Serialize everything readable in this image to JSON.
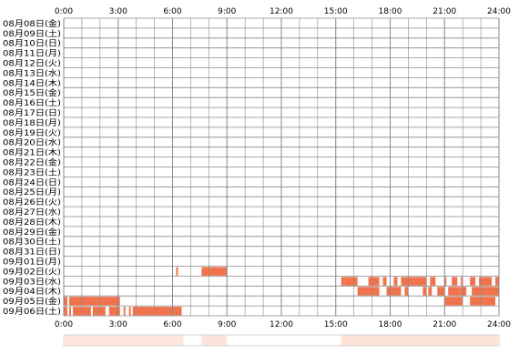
{
  "chart_data": {
    "type": "heatmap",
    "title": "",
    "xlabel": "",
    "ylabel": "",
    "x_range_hours": [
      0,
      24
    ],
    "x_ticks": [
      "0:00",
      "3:00",
      "6:00",
      "9:00",
      "12:00",
      "15:00",
      "18:00",
      "21:00",
      "24:00"
    ],
    "grid": true,
    "colors": {
      "activity": "#f0734d",
      "activity_light": "#f9b8a0",
      "grid": "#888888",
      "summary_light": "#fde3d8"
    },
    "rows": [
      {
        "label": "08月08日(金)",
        "intervals": []
      },
      {
        "label": "08月09日(土)",
        "intervals": []
      },
      {
        "label": "08月10日(日)",
        "intervals": []
      },
      {
        "label": "08月11日(月)",
        "intervals": []
      },
      {
        "label": "08月12日(火)",
        "intervals": []
      },
      {
        "label": "08月13日(水)",
        "intervals": []
      },
      {
        "label": "08月14日(木)",
        "intervals": []
      },
      {
        "label": "08月15日(金)",
        "intervals": []
      },
      {
        "label": "08月16日(土)",
        "intervals": []
      },
      {
        "label": "08月17日(日)",
        "intervals": []
      },
      {
        "label": "08月18日(月)",
        "intervals": []
      },
      {
        "label": "08月19日(火)",
        "intervals": []
      },
      {
        "label": "08月20日(水)",
        "intervals": []
      },
      {
        "label": "08月21日(木)",
        "intervals": []
      },
      {
        "label": "08月22日(金)",
        "intervals": []
      },
      {
        "label": "08月23日(土)",
        "intervals": []
      },
      {
        "label": "08月24日(日)",
        "intervals": []
      },
      {
        "label": "08月25日(月)",
        "intervals": []
      },
      {
        "label": "08月26日(火)",
        "intervals": []
      },
      {
        "label": "08月27日(水)",
        "intervals": []
      },
      {
        "label": "08月28日(木)",
        "intervals": []
      },
      {
        "label": "08月29日(金)",
        "intervals": []
      },
      {
        "label": "08月30日(土)",
        "intervals": []
      },
      {
        "label": "08月31日(日)",
        "intervals": []
      },
      {
        "label": "09月01日(月)",
        "intervals": []
      },
      {
        "label": "09月02日(火)",
        "intervals": [
          [
            6.2,
            6.3
          ],
          [
            7.6,
            9.0
          ]
        ]
      },
      {
        "label": "09月03日(水)",
        "intervals": [
          [
            15.3,
            15.5
          ],
          [
            15.5,
            16.2
          ],
          [
            16.8,
            17.4
          ],
          [
            17.6,
            17.8
          ],
          [
            18.2,
            18.4
          ],
          [
            18.6,
            20.0
          ],
          [
            20.2,
            20.5
          ],
          [
            21.0,
            21.1
          ],
          [
            21.4,
            21.7
          ],
          [
            21.9,
            22.0
          ],
          [
            22.4,
            22.7
          ],
          [
            22.9,
            23.6
          ],
          [
            23.8,
            24.0
          ]
        ]
      },
      {
        "label": "09月04日(木)",
        "intervals": [
          [
            16.2,
            17.4
          ],
          [
            17.8,
            18.6
          ],
          [
            18.8,
            19.0
          ],
          [
            19.8,
            20.0
          ],
          [
            20.1,
            20.3
          ],
          [
            20.6,
            21.0
          ],
          [
            21.2,
            21.8
          ],
          [
            21.8,
            22.2
          ],
          [
            22.5,
            24.0
          ]
        ]
      },
      {
        "label": "09月05日(金)",
        "intervals": [
          [
            0.0,
            0.2
          ],
          [
            0.3,
            3.1
          ],
          [
            21.0,
            22.0
          ],
          [
            22.4,
            23.8
          ]
        ]
      },
      {
        "label": "09月06日(土)",
        "intervals": [
          [
            0.0,
            0.2
          ],
          [
            0.3,
            0.4
          ],
          [
            0.5,
            1.5
          ],
          [
            1.6,
            2.3
          ],
          [
            2.5,
            3.1
          ],
          [
            3.3,
            3.4
          ],
          [
            3.6,
            3.7
          ],
          [
            3.8,
            6.5
          ]
        ]
      }
    ],
    "summary_bar": [
      {
        "start": 0.0,
        "end": 6.6,
        "level": 0.3
      },
      {
        "start": 7.6,
        "end": 9.0,
        "level": 0.35
      },
      {
        "start": 15.3,
        "end": 24.0,
        "level": 0.4
      }
    ]
  }
}
